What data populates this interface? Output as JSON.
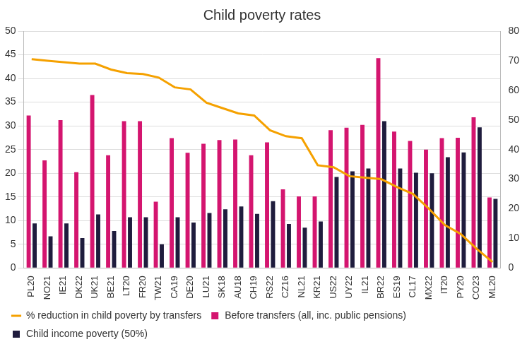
{
  "chart_data": {
    "type": "bar",
    "title": "Child poverty rates",
    "categories": [
      "PL20",
      "NO21",
      "IE21",
      "DK22",
      "UK21",
      "BE21",
      "LT20",
      "FR20",
      "TW21",
      "CA19",
      "DE20",
      "LU21",
      "SK18",
      "AU18",
      "CH19",
      "RS22",
      "CZ16",
      "NL21",
      "KR21",
      "US22",
      "UY22",
      "IL21",
      "BR22",
      "ES19",
      "CL17",
      "MX22",
      "IT20",
      "PY20",
      "CO23",
      "ML20"
    ],
    "series": [
      {
        "name": "Before transfers (all, inc. public pensions)",
        "type": "bar",
        "color": "#d4156f",
        "values": [
          32.2,
          22.7,
          31.2,
          20.2,
          36.5,
          23.8,
          31.0,
          31.0,
          14.0,
          27.4,
          24.3,
          26.2,
          27.0,
          27.1,
          23.8,
          26.5,
          16.6,
          15.1,
          15.1,
          29.1,
          29.6,
          30.2,
          44.3,
          28.8,
          26.8,
          25.0,
          27.4,
          27.5,
          31.8,
          14.9
        ]
      },
      {
        "name": "Child income poverty (50%)",
        "type": "bar",
        "color": "#1f1c3d",
        "values": [
          9.4,
          6.7,
          9.4,
          6.3,
          11.3,
          7.8,
          10.7,
          10.7,
          5.0,
          10.7,
          9.6,
          11.6,
          12.4,
          13.0,
          11.4,
          14.1,
          9.3,
          8.5,
          9.8,
          19.2,
          20.4,
          21.0,
          31.0,
          21.0,
          20.1,
          20.0,
          23.4,
          24.4,
          29.7,
          14.6
        ]
      },
      {
        "name": "% reduction in child poverty by transfers",
        "type": "line",
        "color": "#f5a100",
        "axis": "y2",
        "marker": "none",
        "line_style": "solid",
        "values": [
          70.5,
          70.0,
          69.5,
          69.0,
          69.0,
          67.0,
          65.8,
          65.5,
          64.3,
          61.0,
          60.3,
          55.8,
          54.0,
          52.2,
          51.5,
          46.5,
          44.5,
          43.8,
          34.7,
          34.0,
          31.0,
          30.5,
          30.0,
          27.3,
          25.0,
          20.0,
          14.5,
          11.5,
          6.5,
          2.0
        ]
      }
    ],
    "ylim": [
      0,
      50
    ],
    "yticks": [
      0,
      5,
      10,
      15,
      20,
      25,
      30,
      35,
      40,
      45,
      50
    ],
    "y2lim": [
      0,
      80
    ],
    "y2ticks": [
      0,
      10,
      20,
      30,
      40,
      50,
      60,
      70,
      80
    ],
    "grid": true,
    "legend": "bottom"
  }
}
